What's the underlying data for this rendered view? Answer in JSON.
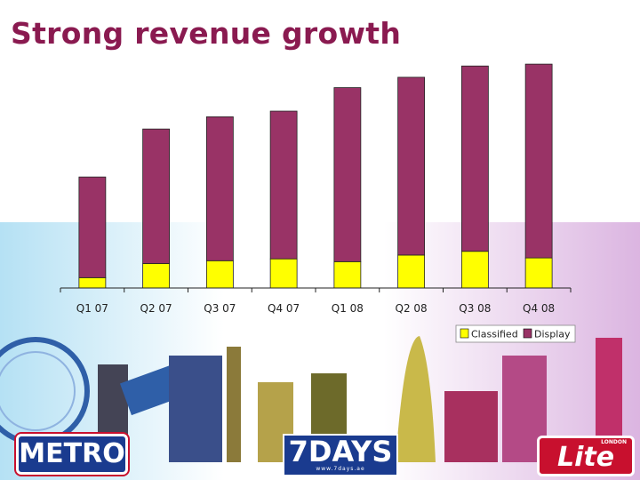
{
  "slide": {
    "title": "Strong revenue growth"
  },
  "chart_data": {
    "type": "bar",
    "stacked": true,
    "title": "Strong revenue growth",
    "xlabel": "",
    "ylabel": "",
    "categories": [
      "Q1 07",
      "Q2 07",
      "Q3 07",
      "Q4 07",
      "Q1 08",
      "Q2 08",
      "Q3 08",
      "Q4 08"
    ],
    "series": [
      {
        "name": "Classified",
        "color": "#ffff00",
        "values": [
          11,
          26,
          29,
          31,
          28,
          35,
          39,
          32
        ]
      },
      {
        "name": "Display",
        "color": "#993366",
        "values": [
          107,
          143,
          153,
          157,
          185,
          189,
          197,
          206
        ]
      }
    ],
    "ylim": [
      0,
      240
    ],
    "grid": false,
    "legend": "bottom-right"
  },
  "logos": {
    "metro": "METRO",
    "sevendays": "7DAYS",
    "sevendays_sub": "www.7days.ae",
    "lite": "Lite",
    "lite_sub": "LONDON"
  },
  "theme": {
    "title_color": "#8a1a50",
    "axis_color": "#222222"
  }
}
